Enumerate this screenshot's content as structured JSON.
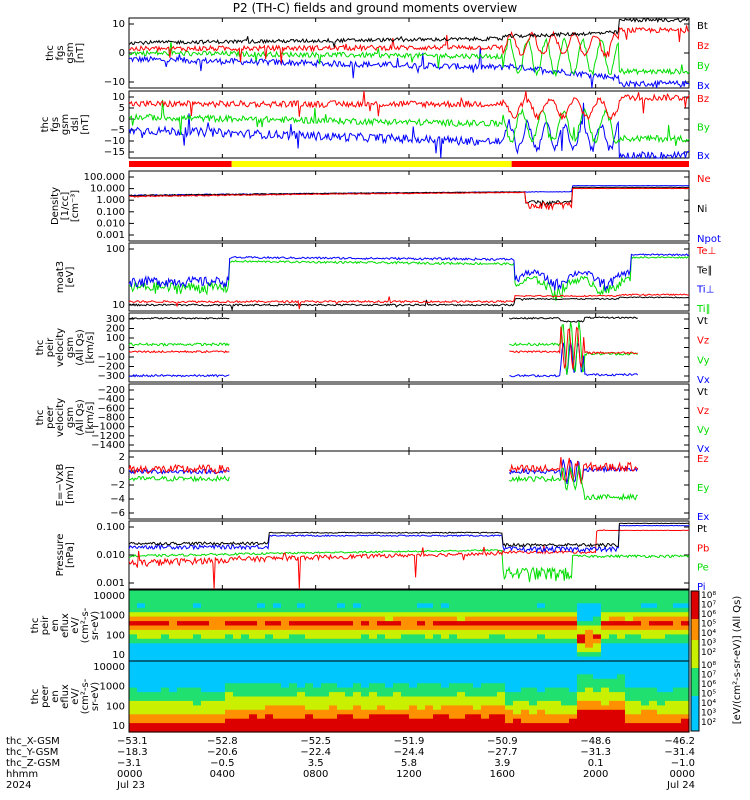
{
  "title": "P2 (TH-C) fields and ground moments overview",
  "colors": {
    "black": "#000000",
    "red": "#ff0000",
    "green": "#00dd00",
    "blue": "#0000ff",
    "yellow": "#ffff00"
  },
  "bar_strip": [
    "red",
    "yellow",
    "red"
  ],
  "panels": [
    {
      "ylabel": [
        "thc",
        "fgs",
        "gsm",
        "[nT]"
      ],
      "ticks": [
        "10",
        "0",
        "−10"
      ],
      "legend": [
        "Bt",
        "Bz",
        "By",
        "Bx"
      ],
      "legend_colors": [
        "black",
        "red",
        "green",
        "blue"
      ]
    },
    {
      "ylabel": [
        "thc",
        "fgs",
        "gsm",
        "dsl",
        "[nT]"
      ],
      "ticks": [
        "10",
        "5",
        "0",
        "−5",
        "−10",
        "−15"
      ],
      "legend": [
        "Bz",
        "By",
        "Bx"
      ],
      "legend_colors": [
        "red",
        "green",
        "blue"
      ]
    },
    {
      "ylabel": [
        "Density",
        "[1/cc]",
        "[cm⁻³]"
      ],
      "ticks": [
        "100.000",
        "10.000",
        "1.000",
        "0.100",
        "0.010",
        "0.001"
      ],
      "legend": [
        "Ne",
        "Ni",
        "Npot"
      ],
      "legend_colors": [
        "red",
        "black",
        "blue"
      ]
    },
    {
      "ylabel": [
        "moat3",
        "[eV]"
      ],
      "ticks": [
        "100",
        "10"
      ],
      "legend": [
        "Te⊥",
        "Te∥",
        "Ti⊥",
        "Ti∥"
      ],
      "legend_colors": [
        "red",
        "black",
        "blue",
        "green"
      ]
    },
    {
      "ylabel": [
        "thc",
        "peir",
        "velocity",
        "gsm",
        "(All Qs)",
        "[km/s]"
      ],
      "ticks": [
        "300",
        "200",
        "100",
        "0",
        "−100",
        "−200",
        "−300"
      ],
      "legend": [
        "Vt",
        "Vz",
        "Vy",
        "Vx"
      ],
      "legend_colors": [
        "black",
        "red",
        "green",
        "blue"
      ]
    },
    {
      "ylabel": [
        "thc",
        "peer",
        "velocity",
        "gsm",
        "(All Qs)",
        "[km/s]"
      ],
      "ticks": [
        "−200",
        "−400",
        "−600",
        "−800",
        "−1000",
        "−1200",
        "−1400"
      ],
      "legend": [
        "Vt",
        "Vz",
        "Vy",
        "Vx"
      ],
      "legend_colors": [
        "black",
        "red",
        "green",
        "blue"
      ]
    },
    {
      "ylabel": [
        "E=−VxB",
        "[mV/m]"
      ],
      "ticks": [
        "2",
        "0",
        "−2",
        "−4",
        "−6"
      ],
      "legend": [
        "Ez",
        "Ey",
        "Ex"
      ],
      "legend_colors": [
        "red",
        "green",
        "blue"
      ]
    },
    {
      "ylabel": [
        "Pressure",
        "[nPa]"
      ],
      "ticks": [
        "0.100",
        "0.010",
        "0.001"
      ],
      "legend": [
        "Pt",
        "Pb",
        "Pe",
        "Pi"
      ],
      "legend_colors": [
        "black",
        "red",
        "green",
        "blue"
      ]
    },
    {
      "ylabel": [
        "thc",
        "peir",
        "en",
        "eflux",
        "eV/",
        "(cm²-s-",
        "sr-eV)"
      ],
      "ticks": [
        "10000",
        "1000",
        "100",
        "10"
      ],
      "legend": [],
      "legend_colors": []
    },
    {
      "ylabel": [
        "thc",
        "peer",
        "en",
        "eflux",
        "eV/",
        "(cm²-s-",
        "sr-eV)"
      ],
      "ticks": [
        "10000",
        "1000",
        "100",
        "10"
      ],
      "legend": [],
      "legend_colors": []
    }
  ],
  "colorbar": {
    "label": "[eV/(cm²-s-sr-eV)] (All Qs)",
    "ticks_top": [
      "10⁸",
      "10⁷",
      "10⁶",
      "10⁵",
      "10⁴",
      "10³",
      "10²"
    ],
    "ticks_bottom": [
      "10⁸",
      "10⁷",
      "10⁶",
      "10⁵",
      "10⁴",
      "10³",
      "10²"
    ]
  },
  "xaxis": {
    "row_labels": [
      "thc_X-GSM",
      "thc_Y-GSM",
      "thc_Z-GSM",
      "hhmm",
      "2024"
    ],
    "columns": [
      {
        "x": "−53.1",
        "y": "−18.3",
        "z": "−3.1",
        "hhmm": "0000",
        "date": "Jul 23"
      },
      {
        "x": "−52.8",
        "y": "−20.6",
        "z": "−0.5",
        "hhmm": "0400",
        "date": ""
      },
      {
        "x": "−52.5",
        "y": "−22.4",
        "z": "3.5",
        "hhmm": "0800",
        "date": ""
      },
      {
        "x": "−51.9",
        "y": "−24.4",
        "z": "5.8",
        "hhmm": "1200",
        "date": ""
      },
      {
        "x": "−50.9",
        "y": "−27.7",
        "z": "3.9",
        "hhmm": "1600",
        "date": ""
      },
      {
        "x": "−48.6",
        "y": "−31.3",
        "z": "0.1",
        "hhmm": "2000",
        "date": ""
      },
      {
        "x": "−46.2",
        "y": "−31.4",
        "z": "−1.0",
        "hhmm": "0000",
        "date": "Jul 24"
      }
    ]
  },
  "chart_data": [
    {
      "type": "line",
      "title": "P2 (TH-C) fields and ground moments overview",
      "xlabel": "hhmm",
      "ylabel": "thc fgs gsm [nT]",
      "x": [
        "0000",
        "0400",
        "0800",
        "1200",
        "1600",
        "2000",
        "0000"
      ],
      "series": [
        {
          "name": "Bt",
          "values": [
            5,
            5,
            6,
            5,
            6,
            10,
            17
          ]
        },
        {
          "name": "Bz",
          "values": [
            2,
            3,
            4,
            3,
            3,
            6,
            12
          ]
        },
        {
          "name": "By",
          "values": [
            0,
            1,
            0,
            -1,
            -3,
            -5,
            -8
          ]
        },
        {
          "name": "Bx",
          "values": [
            -3,
            -2,
            -4,
            -5,
            -8,
            -10,
            -15
          ]
        }
      ]
    },
    {
      "type": "line",
      "ylabel": "thc fgs gsm dsl [nT]",
      "x": [
        "0000",
        "0400",
        "0800",
        "1200",
        "1600",
        "2000",
        "0000"
      ],
      "series": [
        {
          "name": "Bz",
          "values": [
            6,
            7,
            8,
            7,
            6,
            9,
            12
          ]
        },
        {
          "name": "By",
          "values": [
            0,
            2,
            0,
            -2,
            -3,
            -7,
            -12
          ]
        },
        {
          "name": "Bx",
          "values": [
            -5,
            -7,
            -9,
            -10,
            -8,
            -12,
            -17
          ]
        }
      ]
    },
    {
      "type": "line",
      "ylabel": "Density [1/cc]",
      "x": [
        "0000",
        "0400",
        "0800",
        "1200",
        "1600",
        "2000",
        "0000"
      ],
      "series": [
        {
          "name": "Ne",
          "values": [
            5,
            6,
            8,
            8,
            10,
            25,
            20
          ]
        },
        {
          "name": "Ni",
          "values": [
            5,
            6,
            8,
            8,
            10,
            30,
            20
          ]
        },
        {
          "name": "Npot",
          "values": [
            5,
            6,
            8,
            8,
            10,
            30,
            40
          ]
        }
      ]
    },
    {
      "type": "line",
      "ylabel": "moat3 [eV]",
      "x": [
        "0000",
        "0400",
        "0800",
        "1200",
        "1600",
        "2000",
        "0000"
      ],
      "series": [
        {
          "name": "Te⊥",
          "values": [
            14,
            15,
            15,
            15,
            15,
            20,
            22
          ]
        },
        {
          "name": "Te∥",
          "values": [
            12,
            12,
            12,
            12,
            13,
            18,
            20
          ]
        },
        {
          "name": "Ti⊥",
          "values": [
            60,
            300,
            300,
            280,
            250,
            80,
            350
          ]
        },
        {
          "name": "Ti∥",
          "values": [
            40,
            250,
            250,
            230,
            200,
            50,
            300
          ]
        }
      ]
    },
    {
      "type": "line",
      "ylabel": "thc peir velocity gsm (All Qs) [km/s]",
      "x": [
        "0000",
        "0400",
        "1600",
        "2000",
        "2200"
      ],
      "series": [
        {
          "name": "Vt",
          "values": [
            285,
            285,
            260,
            275,
            290
          ]
        },
        {
          "name": "Vz",
          "values": [
            -50,
            -40,
            -20,
            -40,
            -50
          ]
        },
        {
          "name": "Vy",
          "values": [
            40,
            40,
            20,
            -50,
            -60
          ]
        },
        {
          "name": "Vx",
          "values": [
            -280,
            -280,
            -250,
            -260,
            -260
          ]
        }
      ]
    },
    {
      "type": "line",
      "ylabel": "thc peer velocity gsm (All Qs) [km/s]",
      "series": []
    },
    {
      "type": "line",
      "ylabel": "E=−VxB [mV/m]",
      "x": [
        "0000",
        "0400",
        "1600",
        "2000",
        "2200"
      ],
      "series": [
        {
          "name": "Ez",
          "values": [
            0.5,
            0.5,
            0,
            0.5,
            1
          ]
        },
        {
          "name": "Ey",
          "values": [
            -1,
            -1.5,
            -1.5,
            -2.5,
            -4
          ]
        },
        {
          "name": "Ex",
          "values": [
            0,
            0,
            0,
            0.5,
            0.5
          ]
        }
      ]
    },
    {
      "type": "line",
      "ylabel": "Pressure [nPa]",
      "x": [
        "0000",
        "0400",
        "0800",
        "1200",
        "1600",
        "2000",
        "0000"
      ],
      "series": [
        {
          "name": "Pt",
          "values": [
            0.05,
            0.08,
            0.2,
            0.15,
            0.05,
            0.08,
            0.5
          ]
        },
        {
          "name": "Pb",
          "values": [
            0.01,
            0.02,
            0.03,
            0.02,
            0.03,
            0.1,
            0.3
          ]
        },
        {
          "name": "Pe",
          "values": [
            0.02,
            0.03,
            0.03,
            0.03,
            0.04,
            0.02,
            0.02
          ]
        },
        {
          "name": "Pi",
          "values": [
            0.04,
            0.06,
            0.15,
            0.12,
            0.04,
            0.05,
            0.08
          ]
        }
      ]
    },
    {
      "type": "heatmap",
      "ylabel": "thc peir en eflux",
      "yrange": [
        5,
        20000
      ],
      "zlabel": "[eV/(cm²-s-sr-eV)] (All Qs)"
    },
    {
      "type": "heatmap",
      "ylabel": "thc peer en eflux",
      "yrange": [
        5,
        20000
      ],
      "zlabel": "[eV/(cm²-s-sr-eV)] (All Qs)"
    }
  ]
}
